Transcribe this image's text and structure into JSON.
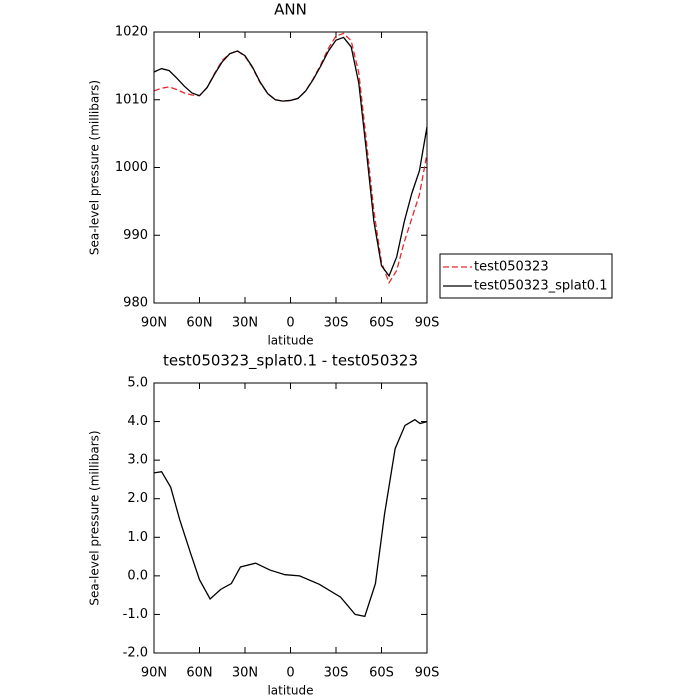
{
  "chart_data": [
    {
      "type": "line",
      "title": "ANN",
      "xlabel": "latitude",
      "ylabel": "Sea-level pressure (millibars)",
      "x": [
        90,
        85,
        80,
        75,
        70,
        65,
        60,
        55,
        50,
        45,
        40,
        35,
        30,
        25,
        20,
        15,
        10,
        5,
        0,
        -5,
        -10,
        -15,
        -20,
        -25,
        -30,
        -35,
        -40,
        -45,
        -50,
        -55,
        -60,
        -65,
        -70,
        -75,
        -80,
        -85,
        -90
      ],
      "series": [
        {
          "name": "test050323",
          "color": "#e8292c",
          "linestyle": "dashed",
          "values": [
            1011.3,
            1011.7,
            1011.9,
            1011.5,
            1011.0,
            1010.7,
            1010.6,
            1011.8,
            1013.9,
            1015.8,
            1016.8,
            1017.2,
            1016.4,
            1014.7,
            1012.5,
            1010.9,
            1010.0,
            1009.8,
            1009.9,
            1010.2,
            1011.3,
            1013.1,
            1015.2,
            1017.6,
            1019.4,
            1019.8,
            1018.7,
            1014.0,
            1004.0,
            993.5,
            986.0,
            983.0,
            984.8,
            989.0,
            992.5,
            996.0,
            1002.0
          ]
        },
        {
          "name": "test050323_splat0.1",
          "color": "#000000",
          "linestyle": "solid",
          "values": [
            1014.1,
            1014.6,
            1014.3,
            1013.2,
            1012.0,
            1011.0,
            1010.6,
            1011.8,
            1013.8,
            1015.6,
            1016.8,
            1017.2,
            1016.5,
            1014.8,
            1012.6,
            1010.9,
            1010.0,
            1009.8,
            1009.9,
            1010.2,
            1011.3,
            1013.0,
            1015.0,
            1017.2,
            1018.8,
            1019.2,
            1017.8,
            1012.5,
            1002.5,
            992.0,
            985.5,
            984.0,
            986.8,
            992.0,
            996.2,
            999.5,
            1006.0
          ]
        }
      ],
      "xlim": [
        90,
        -90
      ],
      "xticks": [
        {
          "value": 90,
          "label": "90N"
        },
        {
          "value": 60,
          "label": "60N"
        },
        {
          "value": 30,
          "label": "30N"
        },
        0,
        {
          "value": -30,
          "label": "30S"
        },
        {
          "value": -60,
          "label": "60S"
        },
        {
          "value": -90,
          "label": "90S"
        }
      ],
      "ylim": [
        980,
        1020
      ],
      "yticks": [
        980,
        990,
        1000,
        1010,
        1020
      ],
      "legend": "right"
    },
    {
      "type": "line",
      "title": "test050323_splat0.1 - test050323",
      "xlabel": "latitude",
      "ylabel": "Sea-level pressure (millibars)",
      "x": [
        90,
        85,
        79,
        73,
        66,
        60,
        53,
        46,
        39,
        33,
        23,
        13.5,
        3.6,
        -6,
        -19,
        -33,
        -42.6,
        -49,
        -56,
        -62,
        -69,
        -75.5,
        -82,
        -85.4,
        -90
      ],
      "series": [
        {
          "color": "#000000",
          "linestyle": "solid",
          "values": [
            2.67,
            2.7,
            2.3,
            1.45,
            0.6,
            -0.1,
            -0.6,
            -0.35,
            -0.2,
            0.23,
            0.33,
            0.15,
            0.03,
            0.0,
            -0.22,
            -0.55,
            -1.0,
            -1.05,
            -0.2,
            1.6,
            3.3,
            3.9,
            4.05,
            3.95,
            4.0
          ]
        }
      ],
      "xlim": [
        90,
        -90
      ],
      "xticks": [
        {
          "value": 90,
          "label": "90N"
        },
        {
          "value": 60,
          "label": "60N"
        },
        {
          "value": 30,
          "label": "30N"
        },
        0,
        {
          "value": -30,
          "label": "30S"
        },
        {
          "value": -60,
          "label": "60S"
        },
        {
          "value": -90,
          "label": "90S"
        }
      ],
      "ylim": [
        -2,
        5
      ],
      "yticks": [
        {
          "value": -2,
          "label": "-2.0"
        },
        {
          "value": -1,
          "label": "-1.0"
        },
        {
          "value": 0,
          "label": "0.0"
        },
        {
          "value": 1,
          "label": "1.0"
        },
        {
          "value": 2,
          "label": "2.0"
        },
        {
          "value": 3,
          "label": "3.0"
        },
        {
          "value": 4,
          "label": "4.0"
        },
        {
          "value": 5,
          "label": "5.0"
        }
      ]
    }
  ]
}
